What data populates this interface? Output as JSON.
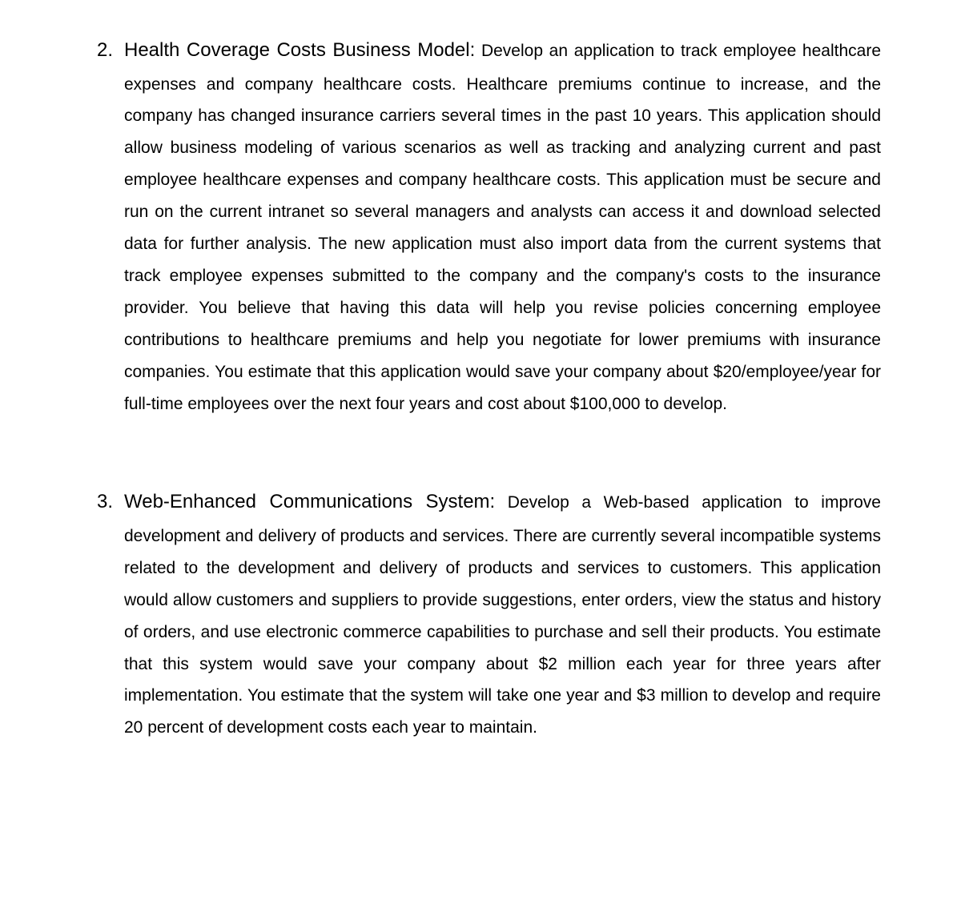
{
  "items": [
    {
      "number": "2.",
      "title": "Health Coverage Costs Business Model:",
      "body": "Develop an application to track employee healthcare expenses and company healthcare costs. Healthcare premiums continue to increase, and the company has changed insurance carriers several times in the past 10 years. This application should allow business modeling of various scenarios as well as tracking and analyzing current and past employee healthcare expenses and company healthcare costs. This application must be secure and run on the current intranet so several managers and analysts can access it and download selected data for further analysis. The new application must also import data from the current systems that track employee expenses submitted to the company and the company's costs to the insurance provider. You believe that having this data will help you revise policies concerning employee contributions to healthcare premiums and help you negotiate for lower premiums with insurance companies. You estimate that this application would save your company about $20/employee/year for full-time employees over the next four years and cost about $100,000 to develop."
    },
    {
      "number": "3.",
      "title": "Web-Enhanced Communications System:",
      "body": "Develop a Web-based application to improve development and delivery of products and services. There are currently several incompatible systems related to the development and delivery of products and services to customers. This application would allow customers and suppliers to provide suggestions, enter orders, view the status and history of orders, and use electronic commerce capabilities to purchase and sell their products. You estimate that this system would save your company about $2 million each year for three years after implementation. You estimate that the system will take one year and $3 million to develop and require 20 percent of development costs each year to maintain."
    }
  ]
}
